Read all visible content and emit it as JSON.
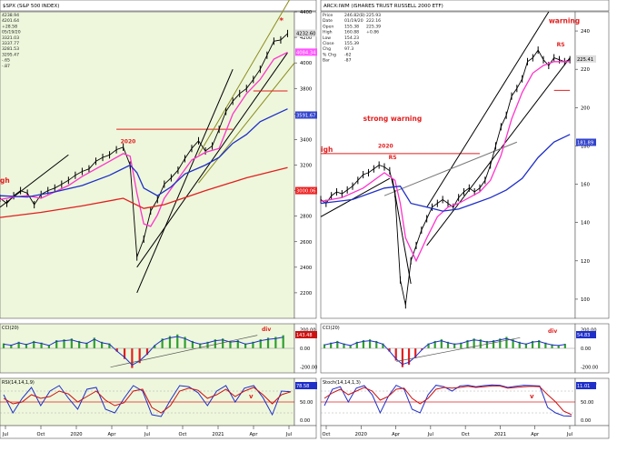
{
  "chart_data": [
    {
      "type": "line",
      "title": "$SPX (S&P 500 INDEX)",
      "header_lines": [
        "4238.94",
        "4201.64",
        "+28.58",
        "05/19/20",
        "3321.03",
        "3337.77",
        "3281.53",
        "3295.47",
        "-.65",
        "-.87"
      ],
      "xaxis_ticks": [
        "Jul",
        "Oct",
        "2020",
        "Apr",
        "Jul",
        "Oct",
        "2021",
        "Apr",
        "Jul"
      ],
      "ylim": [
        2000,
        4400
      ],
      "yaxis_ticks": [
        2200,
        2400,
        2600,
        2800,
        3000,
        3200,
        3400,
        3600,
        3800,
        4000,
        4200,
        4400
      ],
      "value_labels": [
        {
          "text": "4232.60",
          "value": 4232.6,
          "color": "#dddddd"
        },
        {
          "text": "4084.34",
          "value": 4084.34,
          "color": "#ff55ff"
        },
        {
          "text": "3591.67",
          "value": 3591.67,
          "color": "#3344cc"
        },
        {
          "text": "3000.06",
          "value": 3000.06,
          "color": "#ee2222"
        }
      ],
      "annotations": [
        {
          "text": "2020",
          "x": 17.6,
          "y": 3370
        },
        {
          "text": "*",
          "x": 40.8,
          "y": 4310
        },
        {
          "text": "gh",
          "x": 0,
          "y": 3060
        }
      ],
      "series": [
        {
          "name": "price",
          "x": [
            0,
            1,
            2,
            3,
            4,
            5,
            6,
            7,
            8,
            9,
            10,
            11,
            12,
            13,
            14,
            15,
            16,
            17,
            18,
            19,
            20,
            21,
            22,
            23,
            24,
            25,
            26,
            27,
            28,
            29,
            30,
            31,
            32,
            33,
            34,
            35,
            36,
            37,
            38,
            39,
            40,
            41,
            42
          ],
          "values": [
            2940,
            2900,
            2960,
            3000,
            2980,
            2890,
            2970,
            3000,
            3020,
            3050,
            3080,
            3120,
            3150,
            3170,
            3230,
            3260,
            3280,
            3320,
            3340,
            3200,
            2480,
            2620,
            2840,
            2930,
            3050,
            3100,
            3160,
            3250,
            3330,
            3390,
            3310,
            3350,
            3480,
            3620,
            3700,
            3760,
            3800,
            3870,
            3950,
            4060,
            4170,
            4180,
            4230
          ]
        },
        {
          "name": "ma20",
          "x": [
            0,
            2,
            4,
            6,
            8,
            10,
            12,
            14,
            16,
            18,
            19,
            20,
            21,
            22,
            23,
            24,
            26,
            28,
            30,
            32,
            34,
            36,
            38,
            40,
            42
          ],
          "values": [
            2930,
            2950,
            2960,
            2940,
            2990,
            3040,
            3110,
            3170,
            3230,
            3290,
            3270,
            2980,
            2740,
            2720,
            2810,
            2940,
            3090,
            3240,
            3300,
            3330,
            3600,
            3760,
            3870,
            4030,
            4084
          ]
        },
        {
          "name": "ma50",
          "x": [
            0,
            4,
            8,
            12,
            16,
            19,
            20,
            21,
            23,
            25,
            27,
            30,
            32,
            34,
            36,
            38,
            40,
            42
          ],
          "values": [
            2960,
            2950,
            2990,
            3040,
            3120,
            3200,
            3140,
            3020,
            2960,
            3030,
            3130,
            3200,
            3260,
            3370,
            3440,
            3540,
            3590,
            3640
          ]
        },
        {
          "name": "ma200",
          "x": [
            0,
            6,
            12,
            18,
            21,
            24,
            30,
            36,
            42
          ],
          "values": [
            2790,
            2830,
            2880,
            2940,
            2860,
            2890,
            3000,
            3100,
            3180
          ]
        }
      ],
      "overlay_lines": [
        {
          "x": [
            0,
            10
          ],
          "values": [
            2870,
            3280
          ]
        },
        {
          "x": [
            17,
            34
          ],
          "values": [
            3480,
            3480
          ]
        },
        {
          "x": [
            20,
            34
          ],
          "values": [
            2200,
            3950
          ]
        },
        {
          "x": [
            20,
            42
          ],
          "values": [
            2400,
            4080
          ]
        },
        {
          "x": [
            29,
            43
          ],
          "values": [
            3280,
            4560
          ]
        },
        {
          "x": [
            29,
            43
          ],
          "values": [
            3060,
            4000
          ]
        },
        {
          "x": [
            37,
            42
          ],
          "values": [
            3780,
            3780
          ]
        }
      ],
      "panels": [
        {
          "name": "CCI(20)",
          "label_text": "143.48",
          "ylim": [
            -300,
            300
          ],
          "ticks": [
            "200.00",
            "0.00",
            "-200.00"
          ],
          "annotation": "div",
          "histogram": [
            60,
            45,
            80,
            55,
            90,
            70,
            40,
            100,
            110,
            120,
            90,
            70,
            130,
            80,
            60,
            -40,
            -130,
            -240,
            -180,
            -80,
            40,
            120,
            150,
            170,
            140,
            90,
            60,
            80,
            110,
            120,
            90,
            100,
            60,
            80,
            110,
            130,
            140,
            160
          ],
          "trend": {
            "x": [
              16,
              38
            ],
            "values": [
              -230,
              160
            ]
          }
        },
        {
          "name": "RSI(14,14,1,9)",
          "label_text": "78.58",
          "ylim": [
            0,
            100
          ],
          "ticks": [
            "100.00",
            "50.00",
            "0.00"
          ],
          "annotation": "v",
          "fast": [
            70,
            20,
            60,
            90,
            40,
            80,
            95,
            60,
            30,
            85,
            90,
            30,
            20,
            60,
            95,
            80,
            15,
            10,
            55,
            95,
            92,
            75,
            40,
            80,
            95,
            50,
            88,
            95,
            62,
            15,
            80,
            78
          ],
          "slow": [
            60,
            45,
            50,
            70,
            60,
            65,
            80,
            72,
            50,
            65,
            80,
            55,
            40,
            48,
            80,
            85,
            35,
            20,
            40,
            80,
            88,
            82,
            60,
            70,
            85,
            65,
            80,
            90,
            70,
            45,
            70,
            78
          ]
        }
      ]
    },
    {
      "type": "line",
      "title": "ARCX:IWM (iSHARES TRUST RUSSELL 2000 ETF)",
      "header_lines": [
        "Price",
        "Date",
        "Open",
        "High",
        "Low",
        "Close",
        "Chg",
        "% Chg",
        "Bar",
        "246.82(B)",
        "01/19/20",
        "155.38",
        "160.88",
        "154.23",
        "155.39",
        "97.3",
        "-62",
        "-87",
        "225.93",
        "222.16",
        "225.39",
        "+0.86"
      ],
      "xaxis_ticks": [
        "Oct",
        "2020",
        "Apr",
        "Jul",
        "Oct",
        "2021",
        "Apr",
        "Jul"
      ],
      "ylim": [
        90,
        250
      ],
      "yaxis_ticks": [
        100,
        120,
        140,
        160,
        180,
        200,
        220,
        240
      ],
      "value_labels": [
        {
          "text": "225.41",
          "value": 225.41,
          "color": "#dddddd"
        },
        {
          "text": "181.89",
          "value": 181.89,
          "color": "#3344cc"
        }
      ],
      "annotations": [
        {
          "text": "warning",
          "x": 43,
          "y": 244
        },
        {
          "text": "RS",
          "x": 44.5,
          "y": 232
        },
        {
          "text": "strong warning",
          "x": 8,
          "y": 193
        },
        {
          "text": "2020",
          "x": 10.8,
          "y": 179
        },
        {
          "text": "RS",
          "x": 12.8,
          "y": 173
        },
        {
          "text": "igh",
          "x": 0,
          "y": 177
        },
        {
          "text": "div",
          "x": 38,
          "y": 0
        }
      ],
      "series": [
        {
          "name": "price",
          "x": [
            0,
            1,
            2,
            3,
            4,
            5,
            6,
            7,
            8,
            9,
            10,
            11,
            12,
            13,
            14,
            15,
            16,
            17,
            18,
            19,
            20,
            21,
            22,
            23,
            24,
            25,
            26,
            27,
            28,
            29,
            30,
            31,
            32,
            33,
            34,
            35,
            36,
            37,
            38,
            39,
            40,
            41,
            42,
            43,
            44,
            45,
            46,
            47
          ],
          "values": [
            152,
            150,
            154,
            156,
            155,
            157,
            159,
            162,
            165,
            166,
            168,
            170,
            169,
            167,
            155,
            110,
            97,
            120,
            128,
            136,
            142,
            148,
            150,
            152,
            150,
            148,
            153,
            156,
            158,
            156,
            158,
            162,
            170,
            180,
            190,
            196,
            206,
            210,
            215,
            224,
            226,
            230,
            225,
            222,
            226,
            225,
            224,
            225
          ]
        },
        {
          "name": "ma20",
          "x": [
            0,
            4,
            8,
            12,
            14,
            15,
            16,
            18,
            20,
            22,
            24,
            26,
            28,
            30,
            32,
            34,
            36,
            38,
            40,
            42,
            44,
            47
          ],
          "values": [
            151,
            153,
            158,
            166,
            162,
            150,
            132,
            120,
            132,
            143,
            148,
            150,
            153,
            156,
            162,
            175,
            194,
            208,
            218,
            222,
            224,
            224
          ]
        },
        {
          "name": "ma50",
          "x": [
            0,
            6,
            12,
            15,
            17,
            20,
            23,
            26,
            29,
            32,
            35,
            38,
            41,
            44,
            47
          ],
          "values": [
            150,
            152,
            158,
            159,
            150,
            148,
            146,
            147,
            150,
            153,
            157,
            163,
            174,
            182,
            186
          ]
        }
      ],
      "overlay_lines": [
        {
          "x": [
            0,
            13
          ],
          "values": [
            143,
            163
          ]
        },
        {
          "x": [
            0,
            30
          ],
          "values": [
            176,
            176
          ]
        },
        {
          "x": [
            13.5,
            17
          ],
          "values": [
            163,
            108
          ]
        },
        {
          "x": [
            20,
            43
          ],
          "values": [
            148,
            250
          ]
        },
        {
          "x": [
            20,
            47
          ],
          "values": [
            128,
            226
          ]
        },
        {
          "x": [
            12,
            37
          ],
          "values": [
            154,
            182
          ]
        },
        {
          "x": [
            44,
            47
          ],
          "values": [
            209,
            209
          ]
        }
      ],
      "panels": [
        {
          "name": "CCI(20)",
          "label_text": "54.83",
          "ylim": [
            -300,
            300
          ],
          "ticks": [
            "200.00",
            "0.00",
            "-200.00"
          ],
          "histogram": [
            50,
            70,
            90,
            60,
            40,
            80,
            100,
            110,
            90,
            60,
            -40,
            -150,
            -230,
            -200,
            -120,
            -20,
            60,
            90,
            110,
            80,
            60,
            70,
            100,
            120,
            110,
            90,
            100,
            120,
            140,
            110,
            80,
            60,
            90,
            100,
            70,
            50,
            40,
            55
          ],
          "trend": {
            "x": [
              14,
              38
            ],
            "values": [
              -160,
              130
            ]
          }
        },
        {
          "name": "Stoch(14,14,1,3)",
          "label_text": "11.01",
          "ylim": [
            0,
            100
          ],
          "ticks": [
            "100.00",
            "50.00",
            "0.00"
          ],
          "annotation": "v",
          "fast": [
            40,
            85,
            92,
            50,
            88,
            95,
            70,
            20,
            65,
            96,
            85,
            30,
            20,
            70,
            96,
            92,
            80,
            94,
            96,
            92,
            95,
            97,
            96,
            90,
            93,
            96,
            95,
            94,
            35,
            20,
            12,
            11
          ],
          "slow": [
            60,
            75,
            85,
            70,
            80,
            90,
            80,
            55,
            65,
            85,
            88,
            60,
            45,
            60,
            85,
            90,
            88,
            90,
            93,
            90,
            92,
            94,
            94,
            88,
            90,
            92,
            93,
            92,
            70,
            50,
            25,
            15
          ]
        }
      ]
    }
  ]
}
